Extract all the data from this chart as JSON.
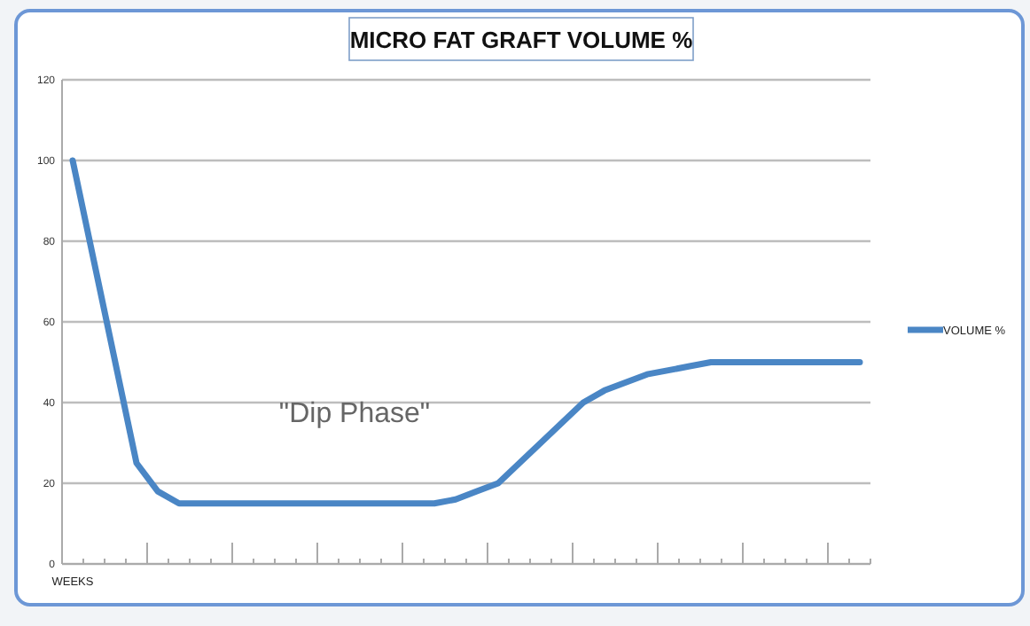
{
  "chart_data": {
    "type": "line",
    "title": "MICRO FAT GRAFT VOLUME %",
    "categories": [
      "WEEKS",
      null,
      null,
      null,
      null,
      null,
      null,
      null,
      null,
      null,
      null,
      null,
      null,
      null,
      null,
      null,
      null,
      null,
      null,
      null,
      null,
      null,
      null,
      null,
      null,
      null,
      null,
      null,
      null,
      null,
      null,
      null,
      null,
      null,
      null,
      null,
      null,
      null
    ],
    "series": [
      {
        "name": "VOLUME %",
        "color": "#4a86c5",
        "values": [
          100,
          75,
          50,
          25,
          18,
          15,
          15,
          15,
          15,
          15,
          15,
          15,
          15,
          15,
          15,
          15,
          15,
          15,
          16,
          18,
          20,
          25,
          30,
          35,
          40,
          43,
          45,
          47,
          48,
          49,
          50,
          50,
          50,
          50,
          50,
          50,
          50,
          50
        ]
      }
    ],
    "ylim": [
      0,
      120
    ],
    "yticks": [
      0,
      20,
      40,
      60,
      80,
      100,
      120
    ],
    "grid": "y",
    "legend": "right",
    "marker": "none",
    "line_style": "solid",
    "annotations": [
      "\"Dip Phase\""
    ]
  }
}
